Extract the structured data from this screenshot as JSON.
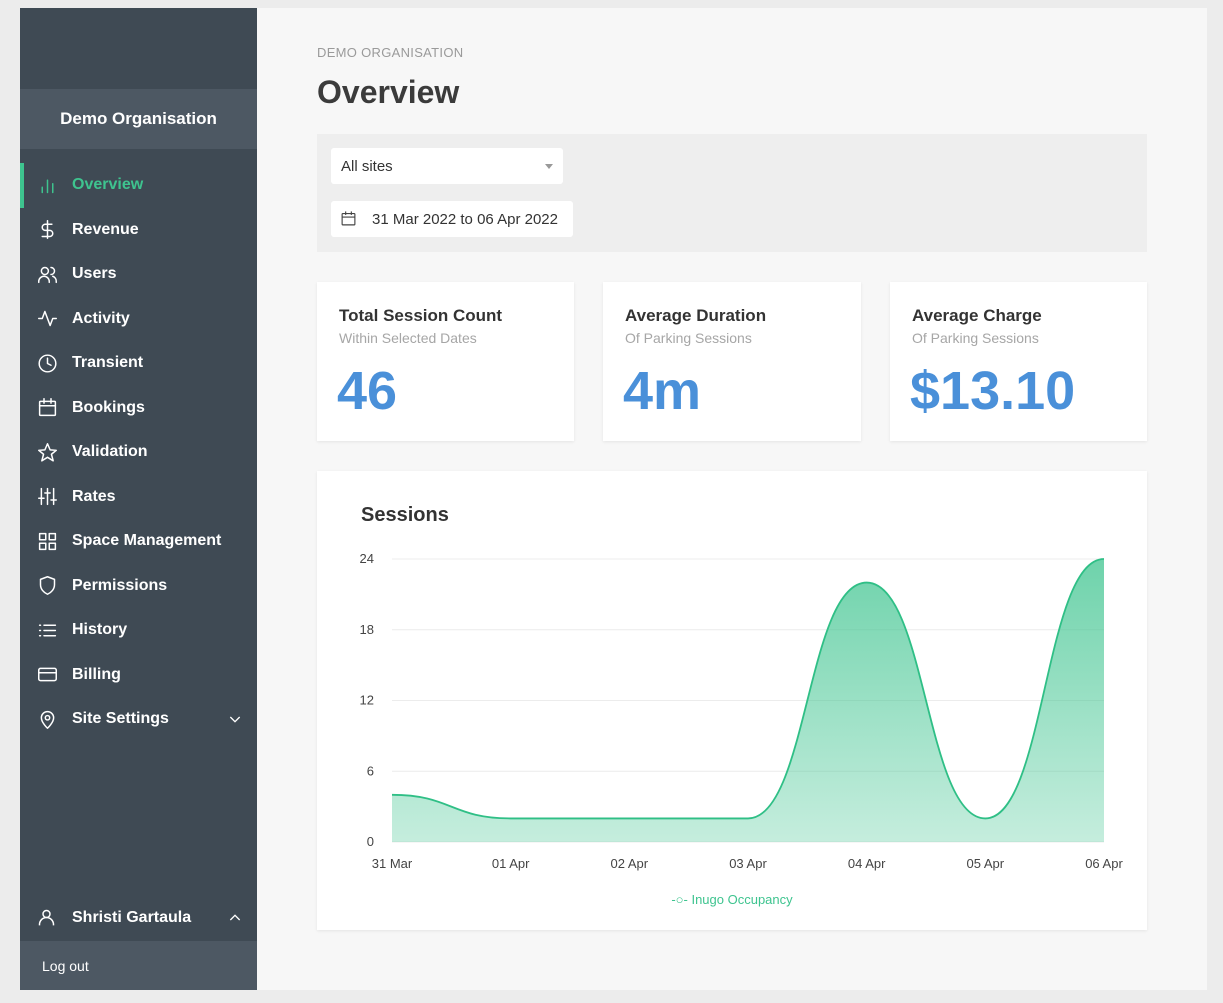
{
  "sidebar": {
    "org_name": "Demo Organisation",
    "items": [
      {
        "label": "Overview",
        "icon": "bar-chart-icon",
        "active": true
      },
      {
        "label": "Revenue",
        "icon": "dollar-icon"
      },
      {
        "label": "Users",
        "icon": "users-icon"
      },
      {
        "label": "Activity",
        "icon": "activity-icon"
      },
      {
        "label": "Transient",
        "icon": "clock-icon"
      },
      {
        "label": "Bookings",
        "icon": "calendar-icon"
      },
      {
        "label": "Validation",
        "icon": "star-icon"
      },
      {
        "label": "Rates",
        "icon": "sliders-icon"
      },
      {
        "label": "Space Management",
        "icon": "grid-icon"
      },
      {
        "label": "Permissions",
        "icon": "shield-icon"
      },
      {
        "label": "History",
        "icon": "list-icon"
      },
      {
        "label": "Billing",
        "icon": "credit-card-icon"
      },
      {
        "label": "Site Settings",
        "icon": "map-pin-icon"
      }
    ],
    "user_name": "Shristi Gartaula",
    "logout_label": "Log out"
  },
  "header": {
    "breadcrumb": "DEMO ORGANISATION",
    "title": "Overview"
  },
  "filters": {
    "site_select": "All sites",
    "date_range": "31 Mar 2022 to 06 Apr 2022"
  },
  "stats": [
    {
      "title": "Total Session Count",
      "subtitle": "Within Selected Dates",
      "value": "46"
    },
    {
      "title": "Average Duration",
      "subtitle": "Of Parking Sessions",
      "value": "4m"
    },
    {
      "title": "Average Charge",
      "subtitle": "Of Parking Sessions",
      "value": "$13.10"
    }
  ],
  "colors": {
    "accent": "#3ec48f",
    "stat_value": "#4a90d9",
    "sidebar": "#3f4a54"
  },
  "chart_data": {
    "type": "area",
    "title": "Sessions",
    "categories": [
      "31 Mar",
      "01 Apr",
      "02 Apr",
      "03 Apr",
      "04 Apr",
      "05 Apr",
      "06 Apr"
    ],
    "series": [
      {
        "name": "Inugo Occupancy",
        "values": [
          4,
          2,
          2,
          2,
          22,
          2,
          24
        ]
      }
    ],
    "yticks": [
      0,
      6,
      12,
      18,
      24
    ],
    "ylim": [
      0,
      24
    ],
    "grid": true,
    "legend": "bottom"
  }
}
